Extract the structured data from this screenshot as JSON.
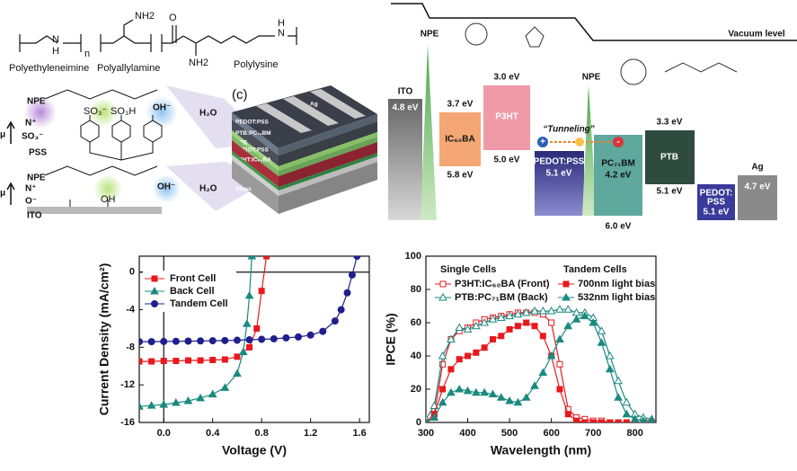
{
  "structures": {
    "names": [
      "Polyethyleneimine",
      "Polyallylamine",
      "Polylysine"
    ],
    "atoms": {
      "nh2_a": "NH2",
      "nh2_b": "NH2",
      "o": "O",
      "n1": "N",
      "h1": "H",
      "n2": "N",
      "h2": "H",
      "sub": "n"
    }
  },
  "interface": {
    "npe_top": "NPE",
    "mu_top": "μ",
    "nplus_top": "N⁺",
    "so3": "SO₃⁻",
    "pss": "PSS",
    "npe_bottom": "NPE",
    "mu_bottom": "μ",
    "nplus_bottom": "N⁺",
    "ominus": "O⁻",
    "ito": "ITO",
    "h2o_top": "H₂O",
    "h2o_bottom": "H₂O",
    "oh_top": "OH⁻",
    "oh_bottom": "OH⁻",
    "so3h": "SO₃H",
    "oh": "OH"
  },
  "device": {
    "panel": "(c)",
    "top": "Ag",
    "layers": [
      "PEDOT:PSS",
      "PTB:PC₇₁BM",
      "NPE",
      "PEDOT:PSS",
      "P3HT:IC₆₀BA",
      "NPE",
      "ITO",
      "Glass"
    ]
  },
  "energy_diagram": {
    "vacuum_level": "Vacuum level",
    "npe_left": "NPE",
    "npe_right": "NPE",
    "ito": {
      "name": "ITO",
      "level": "4.8 eV"
    },
    "ic60ba": {
      "name": "IC₆₀BA",
      "lumo": "3.7 eV",
      "homo": "5.8 eV"
    },
    "p3ht": {
      "name": "P3HT",
      "lumo": "3.0 eV",
      "homo": "5.0 eV"
    },
    "pedot_front": {
      "name": "PEDOT:PSS",
      "level": "5.1 eV"
    },
    "pc71bm": {
      "name": "PC₇₁BM",
      "lumo": "4.2 eV",
      "homo": "6.0 eV"
    },
    "ptb": {
      "name": "PTB",
      "lumo": "3.3 eV",
      "homo": "5.1 eV"
    },
    "pedot_back": {
      "name_lines": [
        "PEDOT:",
        "PSS"
      ],
      "level": "5.1 eV"
    },
    "ag": {
      "name": "Ag",
      "level": "4.7 eV"
    },
    "tunneling": "“Tunneling”",
    "plus": "+",
    "minus": "-"
  },
  "chart_data": [
    {
      "type": "line",
      "xlabel": "Voltage (V)",
      "ylabel": "Current Density (mA/cm²)",
      "xlim": [
        -0.2,
        1.68
      ],
      "ylim": [
        -16,
        1.7
      ],
      "xticks": [
        {
          "value": 0,
          "label": "0.0"
        },
        0.4,
        0.8,
        1.2,
        1.6
      ],
      "yticks": [
        0,
        -4,
        -8,
        -12,
        -16
      ],
      "origin_lines": true,
      "legend": "upper left",
      "series": [
        {
          "name": "Front Cell",
          "color": "#e8191d",
          "marker": "square",
          "filled": true,
          "x": [
            -0.2,
            -0.1,
            0,
            0.1,
            0.2,
            0.3,
            0.4,
            0.5,
            0.6,
            0.7,
            0.76,
            0.8,
            0.84
          ],
          "values": [
            -9.5,
            -9.5,
            -9.45,
            -9.45,
            -9.4,
            -9.4,
            -9.35,
            -9.3,
            -9.0,
            -8.0,
            -6.0,
            -2.0,
            1.7
          ]
        },
        {
          "name": "Back Cell",
          "color": "#1a8a80",
          "marker": "triangle",
          "filled": true,
          "x": [
            -0.2,
            -0.1,
            0,
            0.1,
            0.2,
            0.3,
            0.4,
            0.5,
            0.6,
            0.65,
            0.68,
            0.7,
            0.72
          ],
          "values": [
            -14.3,
            -14.2,
            -14.1,
            -13.9,
            -13.7,
            -13.4,
            -13.0,
            -12.3,
            -10.8,
            -8.5,
            -5.5,
            -2.5,
            1.7
          ]
        },
        {
          "name": "Tandem Cell",
          "color": "#1f1f8c",
          "marker": "circle",
          "filled": true,
          "x": [
            -0.2,
            -0.1,
            0,
            0.1,
            0.2,
            0.3,
            0.4,
            0.5,
            0.6,
            0.7,
            0.8,
            0.9,
            1.0,
            1.1,
            1.2,
            1.3,
            1.4,
            1.45,
            1.5,
            1.54,
            1.58
          ],
          "values": [
            -7.4,
            -7.4,
            -7.38,
            -7.36,
            -7.34,
            -7.32,
            -7.3,
            -7.28,
            -7.25,
            -7.2,
            -7.15,
            -7.1,
            -7.0,
            -6.9,
            -6.7,
            -6.3,
            -5.2,
            -4.0,
            -2.2,
            -0.3,
            1.7
          ]
        }
      ]
    },
    {
      "type": "line",
      "xlabel": "Wavelength (nm)",
      "ylabel": "IPCE (%)",
      "xlim": [
        300,
        850
      ],
      "ylim": [
        0,
        100
      ],
      "xticks": [
        300,
        400,
        500,
        600,
        700,
        800
      ],
      "yticks": [
        0,
        20,
        40,
        60,
        80,
        100
      ],
      "legend": "upper center",
      "legend_titles": [
        "Single Cells",
        "Tandem Cells"
      ],
      "x": [
        300,
        320,
        340,
        360,
        380,
        400,
        420,
        440,
        460,
        480,
        500,
        520,
        540,
        560,
        580,
        600,
        620,
        640,
        660,
        680,
        700,
        720,
        740,
        760,
        780,
        800,
        820,
        840
      ],
      "series": [
        {
          "name": "P3HT:IC₆₀BA (Front)",
          "color": "#e8191d",
          "marker": "square",
          "filled": false,
          "values": [
            0,
            5,
            35,
            50,
            55,
            57,
            60,
            62,
            63,
            64,
            65,
            66,
            66,
            66,
            65,
            60,
            35,
            8,
            3,
            2,
            1,
            1,
            0,
            0,
            0,
            0,
            0,
            0
          ]
        },
        {
          "name": "PTB:PC₇₁BM (Back)",
          "color": "#1a8a80",
          "marker": "triangle",
          "filled": false,
          "values": [
            2,
            10,
            40,
            50,
            57,
            56,
            58,
            60,
            62,
            63,
            64,
            65,
            66,
            67,
            67,
            67,
            68,
            68,
            66,
            66,
            63,
            55,
            40,
            25,
            12,
            5,
            3,
            2
          ]
        },
        {
          "name": "700nm light bias",
          "color": "#e8191d",
          "marker": "square",
          "filled": true,
          "values": [
            0,
            5,
            20,
            32,
            38,
            40,
            42,
            45,
            50,
            52,
            56,
            58,
            60,
            58,
            52,
            40,
            20,
            5,
            1,
            0,
            0,
            0,
            0,
            0,
            0,
            0,
            0,
            0
          ]
        },
        {
          "name": "532nm light bias",
          "color": "#1a8a80",
          "marker": "triangle",
          "filled": true,
          "values": [
            0,
            3,
            12,
            18,
            20,
            19,
            18,
            18,
            17,
            15,
            13,
            12,
            15,
            22,
            30,
            40,
            50,
            58,
            62,
            64,
            60,
            48,
            32,
            15,
            5,
            2,
            1,
            1
          ]
        }
      ]
    }
  ]
}
